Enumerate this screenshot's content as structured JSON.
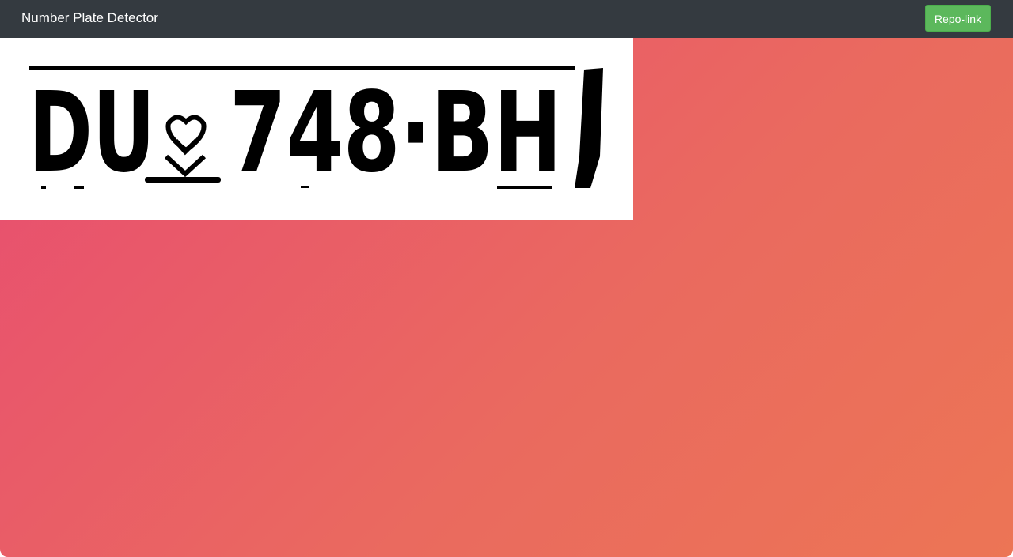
{
  "navbar": {
    "brand": "Number Plate Detector",
    "repo_button_label": "Repo-link"
  },
  "result": {
    "plate_image": {
      "content_text": "DU",
      "emblem": "emblem-icon",
      "content_text_2": "748·BH"
    }
  },
  "colors": {
    "navbar_bg": "#343a40",
    "button_green": "#5cb85c",
    "gradient_start": "#e84b72",
    "gradient_end": "#ec7555"
  }
}
